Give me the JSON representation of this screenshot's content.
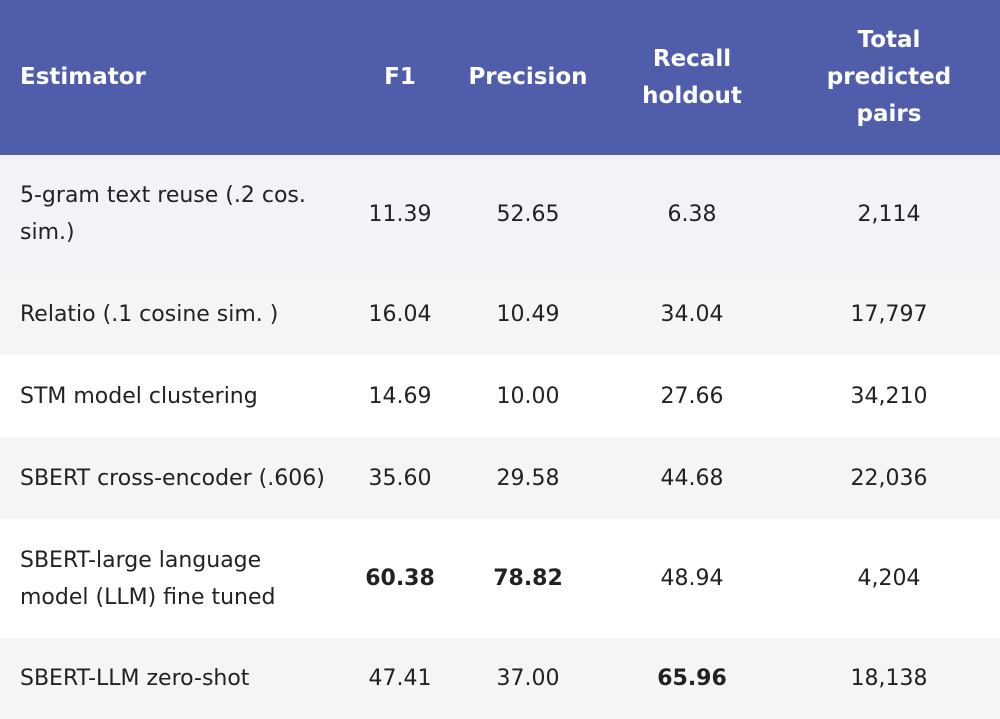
{
  "table": {
    "headers": {
      "estimator": "Estimator",
      "f1": "F1",
      "precision": "Precision",
      "recall_line1": "Recall",
      "recall_line2": "holdout",
      "total_line1": "Total",
      "total_line2": "predicted",
      "total_line3": "pairs"
    },
    "rows": [
      {
        "estimator": "5-gram text reuse (.2 cos. sim.)",
        "f1": "11.39",
        "precision": "52.65",
        "recall": "6.38",
        "total": "2,114"
      },
      {
        "estimator": "Relatio (.1 cosine sim. )",
        "f1": "16.04",
        "precision": "10.49",
        "recall": "34.04",
        "total": "17,797"
      },
      {
        "estimator": "STM model clustering",
        "f1": "14.69",
        "precision": "10.00",
        "recall": "27.66",
        "total": "34,210"
      },
      {
        "estimator": "SBERT cross-encoder (.606)",
        "f1": "35.60",
        "precision": "29.58",
        "recall": "44.68",
        "total": "22,036"
      },
      {
        "estimator": "SBERT-large language model (LLM) fine tuned",
        "f1": "60.38",
        "precision": "78.82",
        "recall": "48.94",
        "total": "4,204"
      },
      {
        "estimator": "SBERT-LLM zero-shot",
        "f1": "47.41",
        "precision": "37.00",
        "recall": "65.96",
        "total": "18,138"
      }
    ]
  },
  "colors": {
    "header_bg": "#4f5dab",
    "header_text": "#ffffff",
    "row_alt_bg": "#f5f5f5"
  }
}
